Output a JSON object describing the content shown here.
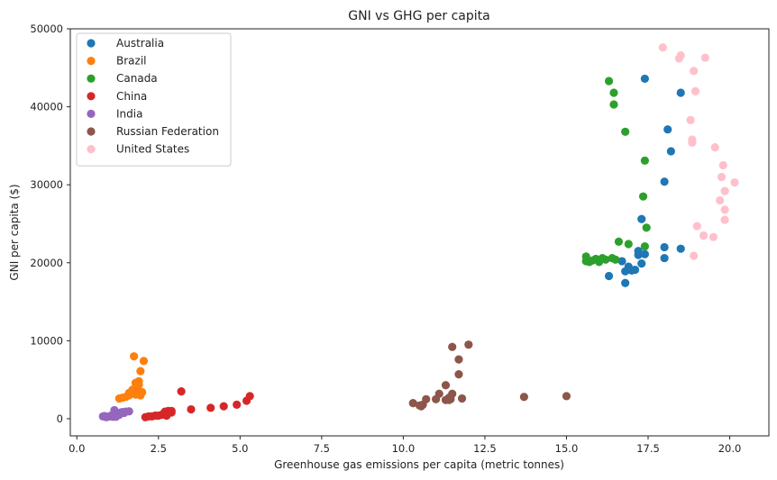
{
  "chart_data": {
    "type": "scatter",
    "title": "GNI vs GHG per capita",
    "xlabel": "Greenhouse gas emissions per capita (metric tonnes)",
    "ylabel": "GNI per capita ($)",
    "xlim": [
      -0.2,
      21.2
    ],
    "ylim": [
      -2200,
      50000
    ],
    "xticks": [
      0,
      2.5,
      5,
      7.5,
      10,
      12.5,
      15,
      17.5,
      20
    ],
    "xtick_labels": [
      "0.0",
      "2.5",
      "5.0",
      "7.5",
      "10.0",
      "12.5",
      "15.0",
      "17.5",
      "20.0"
    ],
    "yticks": [
      0,
      10000,
      20000,
      30000,
      40000,
      50000
    ],
    "ytick_labels": [
      "0",
      "10000",
      "20000",
      "30000",
      "40000",
      "50000"
    ],
    "grid": false,
    "legend_position": "top-left",
    "series": [
      {
        "name": "Australia",
        "color": "#1f77b4",
        "points": [
          [
            16.3,
            18300
          ],
          [
            16.8,
            17400
          ],
          [
            16.8,
            18900
          ],
          [
            16.9,
            19500
          ],
          [
            17.0,
            19000
          ],
          [
            17.1,
            19100
          ],
          [
            16.7,
            20200
          ],
          [
            17.2,
            21000
          ],
          [
            17.2,
            21500
          ],
          [
            17.3,
            19900
          ],
          [
            17.4,
            21100
          ],
          [
            17.3,
            25600
          ],
          [
            18.0,
            30400
          ],
          [
            18.0,
            20600
          ],
          [
            18.0,
            22000
          ],
          [
            18.5,
            21800
          ],
          [
            18.2,
            34300
          ],
          [
            18.1,
            37100
          ],
          [
            18.5,
            41800
          ],
          [
            17.4,
            43600
          ]
        ]
      },
      {
        "name": "Brazil",
        "color": "#ff7f0e",
        "points": [
          [
            1.3,
            2600
          ],
          [
            1.4,
            2700
          ],
          [
            1.5,
            2800
          ],
          [
            1.6,
            3000
          ],
          [
            1.7,
            3300
          ],
          [
            1.8,
            3100
          ],
          [
            1.9,
            3200
          ],
          [
            1.9,
            3600
          ],
          [
            1.7,
            3700
          ],
          [
            1.8,
            4000
          ],
          [
            1.9,
            4400
          ],
          [
            1.9,
            4800
          ],
          [
            1.8,
            3400
          ],
          [
            1.8,
            4600
          ],
          [
            1.95,
            3000
          ],
          [
            2.0,
            3400
          ],
          [
            1.95,
            6100
          ],
          [
            2.05,
            7400
          ],
          [
            1.75,
            8000
          ],
          [
            1.6,
            3300
          ]
        ]
      },
      {
        "name": "Canada",
        "color": "#2ca02c",
        "points": [
          [
            15.6,
            20200
          ],
          [
            15.7,
            20100
          ],
          [
            15.8,
            20300
          ],
          [
            15.9,
            20500
          ],
          [
            16.0,
            20100
          ],
          [
            16.1,
            20600
          ],
          [
            16.2,
            20400
          ],
          [
            16.4,
            20600
          ],
          [
            16.5,
            20400
          ],
          [
            15.6,
            20800
          ],
          [
            16.9,
            22400
          ],
          [
            16.6,
            22700
          ],
          [
            17.4,
            22100
          ],
          [
            17.45,
            24500
          ],
          [
            17.35,
            28500
          ],
          [
            17.4,
            33100
          ],
          [
            16.8,
            36800
          ],
          [
            16.45,
            40300
          ],
          [
            16.45,
            41800
          ],
          [
            16.3,
            43300
          ]
        ]
      },
      {
        "name": "China",
        "color": "#d62728",
        "points": [
          [
            2.1,
            200
          ],
          [
            2.2,
            300
          ],
          [
            2.3,
            300
          ],
          [
            2.4,
            400
          ],
          [
            2.5,
            400
          ],
          [
            2.6,
            500
          ],
          [
            2.7,
            700
          ],
          [
            2.7,
            900
          ],
          [
            2.8,
            1000
          ],
          [
            2.9,
            800
          ],
          [
            3.2,
            3500
          ],
          [
            3.5,
            1200
          ],
          [
            4.1,
            1400
          ],
          [
            4.5,
            1600
          ],
          [
            4.9,
            1800
          ],
          [
            5.2,
            2300
          ],
          [
            5.3,
            2900
          ],
          [
            2.9,
            1000
          ],
          [
            2.65,
            600
          ],
          [
            2.75,
            400
          ]
        ]
      },
      {
        "name": "India",
        "color": "#9467bd",
        "points": [
          [
            0.8,
            300
          ],
          [
            0.85,
            350
          ],
          [
            0.9,
            200
          ],
          [
            1.0,
            300
          ],
          [
            1.05,
            400
          ],
          [
            1.1,
            500
          ],
          [
            1.15,
            350
          ],
          [
            1.2,
            400
          ],
          [
            1.25,
            600
          ],
          [
            1.3,
            700
          ],
          [
            1.35,
            800
          ],
          [
            1.4,
            850
          ],
          [
            1.5,
            900
          ],
          [
            1.6,
            950
          ],
          [
            1.15,
            1100
          ],
          [
            1.1,
            250
          ],
          [
            0.95,
            250
          ],
          [
            1.2,
            250
          ],
          [
            1.3,
            500
          ],
          [
            1.45,
            750
          ]
        ]
      },
      {
        "name": "Russian Federation",
        "color": "#8c564b",
        "points": [
          [
            10.3,
            2000
          ],
          [
            10.5,
            1700
          ],
          [
            10.6,
            1800
          ],
          [
            10.7,
            2500
          ],
          [
            11.0,
            2500
          ],
          [
            11.1,
            3200
          ],
          [
            11.3,
            2400
          ],
          [
            11.4,
            2700
          ],
          [
            11.5,
            3200
          ],
          [
            11.3,
            4300
          ],
          [
            11.5,
            9200
          ],
          [
            11.7,
            7600
          ],
          [
            11.7,
            5700
          ],
          [
            11.8,
            2600
          ],
          [
            12.0,
            9500
          ],
          [
            13.7,
            2800
          ],
          [
            15.0,
            2900
          ],
          [
            10.55,
            1600
          ],
          [
            11.45,
            2500
          ],
          [
            11.4,
            2400
          ]
        ]
      },
      {
        "name": "United States",
        "color": "#ffc0cb",
        "points": [
          [
            18.9,
            20900
          ],
          [
            19.0,
            24700
          ],
          [
            19.2,
            23500
          ],
          [
            19.5,
            23300
          ],
          [
            19.85,
            25500
          ],
          [
            19.85,
            26800
          ],
          [
            19.7,
            28000
          ],
          [
            19.85,
            29200
          ],
          [
            20.15,
            30300
          ],
          [
            19.75,
            31000
          ],
          [
            19.8,
            32500
          ],
          [
            19.55,
            34800
          ],
          [
            18.85,
            35400
          ],
          [
            18.85,
            35800
          ],
          [
            18.8,
            38300
          ],
          [
            18.95,
            42000
          ],
          [
            18.9,
            44600
          ],
          [
            18.45,
            46200
          ],
          [
            18.5,
            46600
          ],
          [
            19.25,
            46300
          ],
          [
            17.95,
            47600
          ]
        ]
      }
    ]
  }
}
